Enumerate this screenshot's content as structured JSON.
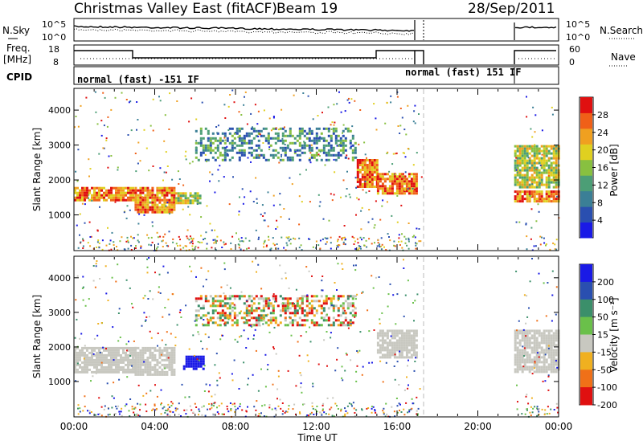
{
  "header": {
    "title": "Christmas Valley East (fitACF)",
    "beam": "Beam 19",
    "date": "28/Sep/2011"
  },
  "top_panels": {
    "nsky": {
      "label": "N.Sky",
      "ticks": [
        "10^5",
        "10^0"
      ]
    },
    "nsearch": {
      "label": "N.Search",
      "ticks": [
        "10^5",
        "10^0"
      ]
    },
    "freq": {
      "label_line1": "Freq.",
      "label_line2": "[MHz]",
      "ticks": [
        "18",
        "8"
      ]
    },
    "nave": {
      "label": "Nave",
      "ticks": [
        "60",
        "0"
      ]
    },
    "cpid": {
      "label": "CPID",
      "modes": [
        "normal (fast) -151 IF",
        "normal (fast) 151 IF"
      ]
    }
  },
  "time_axis": {
    "label": "Time UT",
    "ticks": [
      "00:00",
      "04:00",
      "08:00",
      "12:00",
      "16:00",
      "20:00",
      "00:00"
    ]
  },
  "colors": {
    "power_scale": [
      "#1a1ae6",
      "#2a4fb0",
      "#3b7f96",
      "#4c9e76",
      "#88c040",
      "#e0d020",
      "#f0a020",
      "#f06018",
      "#e01010"
    ],
    "velocity_scale": [
      "#1a1ae6",
      "#2a4fb0",
      "#3b8f6a",
      "#6ac04a",
      "#c8c8c0",
      "#f0b020",
      "#f07018",
      "#e01010"
    ]
  },
  "chart_data": [
    {
      "type": "heatmap",
      "name": "power",
      "xlabel": "Time UT",
      "ylabel": "Slant Range [km]",
      "x_range_hours": [
        0,
        24
      ],
      "ylim": [
        0,
        4600
      ],
      "y_ticks": [
        "1000",
        "2000",
        "3000",
        "4000"
      ],
      "colorbar": {
        "label": "Power [dB]",
        "ticks": [
          "4",
          "8",
          "12",
          "16",
          "20",
          "24",
          "28"
        ],
        "range": [
          0,
          32
        ]
      },
      "data_gap_hours": [
        17.2,
        21.8
      ],
      "regions": [
        {
          "t": [
            0.0,
            3.0
          ],
          "range_km": [
            1400,
            1800
          ],
          "level": "high"
        },
        {
          "t": [
            3.0,
            5.0
          ],
          "range_km": [
            1100,
            1800
          ],
          "level": "high"
        },
        {
          "t": [
            5.0,
            6.3
          ],
          "range_km": [
            1350,
            1650
          ],
          "level": "medium"
        },
        {
          "t": [
            6.0,
            14.0
          ],
          "range_km": [
            2600,
            3500
          ],
          "level": "low"
        },
        {
          "t": [
            14.0,
            15.0
          ],
          "range_km": [
            1800,
            2600
          ],
          "level": "high"
        },
        {
          "t": [
            15.0,
            17.0
          ],
          "range_km": [
            1600,
            2200
          ],
          "level": "high"
        },
        {
          "t": [
            21.8,
            24.0
          ],
          "range_km": [
            1400,
            1700
          ],
          "level": "high"
        },
        {
          "t": [
            21.8,
            24.0
          ],
          "range_km": [
            1800,
            3000
          ],
          "level": "medium"
        }
      ]
    },
    {
      "type": "heatmap",
      "name": "velocity",
      "xlabel": "Time UT",
      "ylabel": "Slant Range [km]",
      "x_range_hours": [
        0,
        24
      ],
      "ylim": [
        0,
        4600
      ],
      "y_ticks": [
        "1000",
        "2000",
        "3000",
        "4000"
      ],
      "colorbar": {
        "label": "Velocity [m s⁻¹]",
        "ticks": [
          "200",
          "100",
          "50",
          "15",
          "-15",
          "-50",
          "-100",
          "-200"
        ]
      },
      "data_gap_hours": [
        17.2,
        21.8
      ],
      "regions": [
        {
          "t": [
            0.0,
            3.0
          ],
          "range_km": [
            1300,
            2000
          ],
          "level": "ground"
        },
        {
          "t": [
            3.0,
            5.0
          ],
          "range_km": [
            1200,
            2000
          ],
          "level": "ground"
        },
        {
          "t": [
            5.4,
            6.4
          ],
          "range_km": [
            1350,
            1750
          ],
          "level": "toward_fast"
        },
        {
          "t": [
            6.0,
            14.0
          ],
          "range_km": [
            2600,
            3500
          ],
          "level": "mixed"
        },
        {
          "t": [
            15.0,
            17.0
          ],
          "range_km": [
            1700,
            2500
          ],
          "level": "ground"
        },
        {
          "t": [
            21.8,
            24.0
          ],
          "range_km": [
            1300,
            2500
          ],
          "level": "ground"
        }
      ]
    }
  ]
}
